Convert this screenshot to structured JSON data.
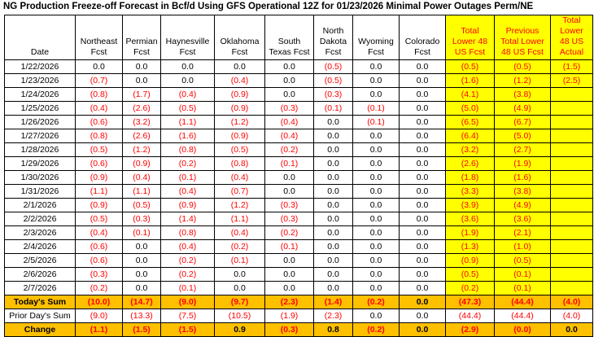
{
  "title": "NG Production Freeze-off Forecast in Bcf/d Using GFS Operational 12Z for 01/23/2026 Minimal Power Outages Perm/NE",
  "colors": {
    "highlight_yellow": "#FFFF00",
    "summary_orange": "#FFC000",
    "negative_red": "#FF0000",
    "grid_border": "#000000"
  },
  "chart_data": {
    "type": "table",
    "title": "NG Production Freeze-off Forecast in Bcf/d Using GFS Operational 12Z for 01/23/2026 Minimal Power Outages Perm/NE",
    "value_note": "values in parentheses shown red (negative); highlighted columns yellow; summary rows orange",
    "header": {
      "date_label": "Date",
      "value_columns": [
        {
          "name": "Northeast Fcst",
          "lines": [
            "Northeast",
            "Fcst"
          ],
          "highlight": false
        },
        {
          "name": "Permian Fcst",
          "lines": [
            "Permian",
            "Fcst"
          ],
          "highlight": false
        },
        {
          "name": "Haynesville Fcst",
          "lines": [
            "Haynesville",
            "Fcst"
          ],
          "highlight": false
        },
        {
          "name": "Oklahoma Fcst",
          "lines": [
            "Oklahoma",
            "Fcst"
          ],
          "highlight": false
        },
        {
          "name": "South Texas Fcst",
          "lines": [
            "South",
            "Texas Fcst"
          ],
          "highlight": false
        },
        {
          "name": "North Dakota Fcst",
          "lines": [
            "North",
            "Dakota",
            "Fcst"
          ],
          "highlight": false
        },
        {
          "name": "Wyoming Fcst",
          "lines": [
            "Wyoming",
            "Fcst"
          ],
          "highlight": false
        },
        {
          "name": "Colorado Fcst",
          "lines": [
            "Colorado",
            "Fcst"
          ],
          "highlight": false
        },
        {
          "name": "Total Lower 48 US Fcst",
          "lines": [
            "Total",
            "Lower 48",
            "US Fcst"
          ],
          "highlight": true
        },
        {
          "name": "Previous Total Lower 48 US Fcst",
          "lines": [
            "Previous",
            "Total Lower",
            "48 US Fcst"
          ],
          "highlight": true
        },
        {
          "name": "Total Lower 48 US Actual",
          "lines": [
            "Total Lower",
            "48 US",
            "Actual"
          ],
          "highlight": true
        }
      ]
    },
    "rows": [
      {
        "label": "1/22/2026",
        "type": "data",
        "values": [
          "0.0",
          "0.0",
          "0.0",
          "0.0",
          "0.0",
          "(0.5)",
          "0.0",
          "0.0",
          "(0.5)",
          "(0.5)",
          "(1.5)"
        ]
      },
      {
        "label": "1/23/2026",
        "type": "data",
        "values": [
          "(0.7)",
          "0.0",
          "0.0",
          "(0.4)",
          "0.0",
          "(0.5)",
          "0.0",
          "0.0",
          "(1.6)",
          "(1.2)",
          "(2.5)"
        ]
      },
      {
        "label": "1/24/2026",
        "type": "data",
        "values": [
          "(0.8)",
          "(1.7)",
          "(0.4)",
          "(0.9)",
          "0.0",
          "(0.3)",
          "0.0",
          "0.0",
          "(4.1)",
          "(3.8)",
          ""
        ]
      },
      {
        "label": "1/25/2026",
        "type": "data",
        "values": [
          "(0.4)",
          "(2.6)",
          "(0.5)",
          "(0.9)",
          "(0.3)",
          "(0.1)",
          "(0.1)",
          "0.0",
          "(5.0)",
          "(4.9)",
          ""
        ]
      },
      {
        "label": "1/26/2026",
        "type": "data",
        "values": [
          "(0.6)",
          "(3.2)",
          "(1.1)",
          "(1.2)",
          "(0.4)",
          "0.0",
          "(0.1)",
          "0.0",
          "(6.5)",
          "(6.7)",
          ""
        ]
      },
      {
        "label": "1/27/2026",
        "type": "data",
        "values": [
          "(0.8)",
          "(2.6)",
          "(1.6)",
          "(0.9)",
          "(0.4)",
          "0.0",
          "0.0",
          "0.0",
          "(6.4)",
          "(5.0)",
          ""
        ]
      },
      {
        "label": "1/28/2026",
        "type": "data",
        "values": [
          "(0.5)",
          "(1.2)",
          "(0.8)",
          "(0.5)",
          "(0.2)",
          "0.0",
          "0.0",
          "0.0",
          "(3.2)",
          "(2.7)",
          ""
        ]
      },
      {
        "label": "1/29/2026",
        "type": "data",
        "values": [
          "(0.6)",
          "(0.9)",
          "(0.2)",
          "(0.8)",
          "(0.1)",
          "0.0",
          "0.0",
          "0.0",
          "(2.6)",
          "(1.9)",
          ""
        ]
      },
      {
        "label": "1/30/2026",
        "type": "data",
        "values": [
          "(0.9)",
          "(0.4)",
          "(0.1)",
          "(0.4)",
          "0.0",
          "0.0",
          "0.0",
          "0.0",
          "(1.8)",
          "(1.6)",
          ""
        ]
      },
      {
        "label": "1/31/2026",
        "type": "data",
        "values": [
          "(1.1)",
          "(1.1)",
          "(0.4)",
          "(0.7)",
          "0.0",
          "0.0",
          "0.0",
          "0.0",
          "(3.3)",
          "(3.8)",
          ""
        ]
      },
      {
        "label": "2/1/2026",
        "type": "data",
        "values": [
          "(0.9)",
          "(0.5)",
          "(0.9)",
          "(1.2)",
          "(0.3)",
          "0.0",
          "0.0",
          "0.0",
          "(3.9)",
          "(4.9)",
          ""
        ]
      },
      {
        "label": "2/2/2026",
        "type": "data",
        "values": [
          "(0.5)",
          "(0.3)",
          "(1.4)",
          "(1.1)",
          "(0.3)",
          "0.0",
          "0.0",
          "0.0",
          "(3.6)",
          "(3.6)",
          ""
        ]
      },
      {
        "label": "2/3/2026",
        "type": "data",
        "values": [
          "(0.4)",
          "(0.1)",
          "(0.8)",
          "(0.4)",
          "(0.2)",
          "0.0",
          "0.0",
          "0.0",
          "(1.9)",
          "(2.1)",
          ""
        ]
      },
      {
        "label": "2/4/2026",
        "type": "data",
        "values": [
          "(0.6)",
          "0.0",
          "(0.4)",
          "(0.2)",
          "(0.1)",
          "0.0",
          "0.0",
          "0.0",
          "(1.3)",
          "(1.0)",
          ""
        ]
      },
      {
        "label": "2/5/2026",
        "type": "data",
        "values": [
          "(0.6)",
          "0.0",
          "(0.2)",
          "(0.1)",
          "0.0",
          "0.0",
          "0.0",
          "0.0",
          "(0.9)",
          "(0.5)",
          ""
        ]
      },
      {
        "label": "2/6/2026",
        "type": "data",
        "values": [
          "(0.3)",
          "0.0",
          "(0.2)",
          "0.0",
          "0.0",
          "0.0",
          "0.0",
          "0.0",
          "(0.5)",
          "(0.1)",
          ""
        ]
      },
      {
        "label": "2/7/2026",
        "type": "data",
        "values": [
          "(0.2)",
          "0.0",
          "(0.1)",
          "0.0",
          "0.0",
          "0.0",
          "0.0",
          "0.0",
          "(0.2)",
          "(0.1)",
          ""
        ]
      },
      {
        "label": "Today's Sum",
        "type": "sum",
        "values": [
          "(10.0)",
          "(14.7)",
          "(9.0)",
          "(9.7)",
          "(2.3)",
          "(1.4)",
          "(0.2)",
          "0.0",
          "(47.3)",
          "(44.4)",
          "(4.0)"
        ]
      },
      {
        "label": "Prior Day's Sum",
        "type": "prior",
        "values": [
          "(9.0)",
          "(13.3)",
          "(7.5)",
          "(10.5)",
          "(1.9)",
          "(2.3)",
          "0.0",
          "0.0",
          "(44.4)",
          "(44.4)",
          "(4.0)"
        ]
      },
      {
        "label": "Change",
        "type": "change",
        "values": [
          "(1.1)",
          "(1.5)",
          "(1.5)",
          "0.9",
          "(0.3)",
          "0.8",
          "(0.2)",
          "0.0",
          "(2.9)",
          "(0.0)",
          "0.0"
        ]
      }
    ]
  }
}
